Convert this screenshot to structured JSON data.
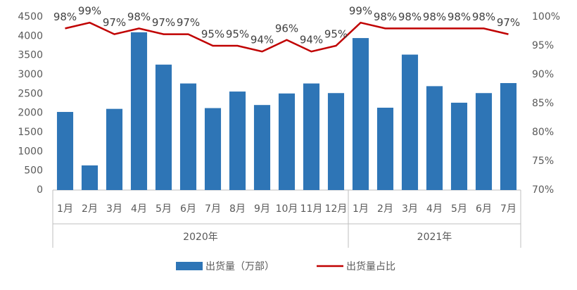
{
  "chart_data": {
    "type": "bar",
    "category_groups": [
      {
        "name": "2020年",
        "categories": [
          "1月",
          "2月",
          "3月",
          "4月",
          "5月",
          "6月",
          "7月",
          "8月",
          "9月",
          "10月",
          "11月",
          "12月"
        ]
      },
      {
        "name": "2021年",
        "categories": [
          "1月",
          "2月",
          "3月",
          "4月",
          "5月",
          "6月",
          "7月"
        ]
      }
    ],
    "series": [
      {
        "name": "出货量（万部）",
        "type": "bar",
        "color": "#2e75b6",
        "values": [
          2030,
          640,
          2110,
          4100,
          3260,
          2770,
          2130,
          2560,
          2210,
          2510,
          2770,
          2520,
          3950,
          2140,
          3520,
          2700,
          2270,
          2520,
          2780
        ]
      },
      {
        "name": "出货量占比",
        "type": "line",
        "axis": "y2",
        "color": "#c00000",
        "values": [
          98,
          99,
          97,
          98,
          97,
          97,
          95,
          95,
          94,
          96,
          94,
          95,
          99,
          98,
          98,
          98,
          98,
          98,
          97
        ],
        "value_labels": [
          "98%",
          "99%",
          "97%",
          "98%",
          "97%",
          "97%",
          "95%",
          "95%",
          "94%",
          "96%",
          "94%",
          "95%",
          "99%",
          "98%",
          "98%",
          "98%",
          "98%",
          "98%",
          "97%"
        ]
      }
    ],
    "ylim": [
      0,
      4500
    ],
    "yticks": [
      0,
      500,
      1000,
      1500,
      2000,
      2500,
      3000,
      3500,
      4000,
      4500
    ],
    "y2lim": [
      70,
      100
    ],
    "y2ticks": [
      {
        "value": 70,
        "label": "70%"
      },
      {
        "value": 75,
        "label": "75%"
      },
      {
        "value": 80,
        "label": "80%"
      },
      {
        "value": 85,
        "label": "85%"
      },
      {
        "value": 90,
        "label": "90%"
      },
      {
        "value": 95,
        "label": "95%"
      },
      {
        "value": 100,
        "label": "100%"
      }
    ],
    "legend": "bottom"
  }
}
